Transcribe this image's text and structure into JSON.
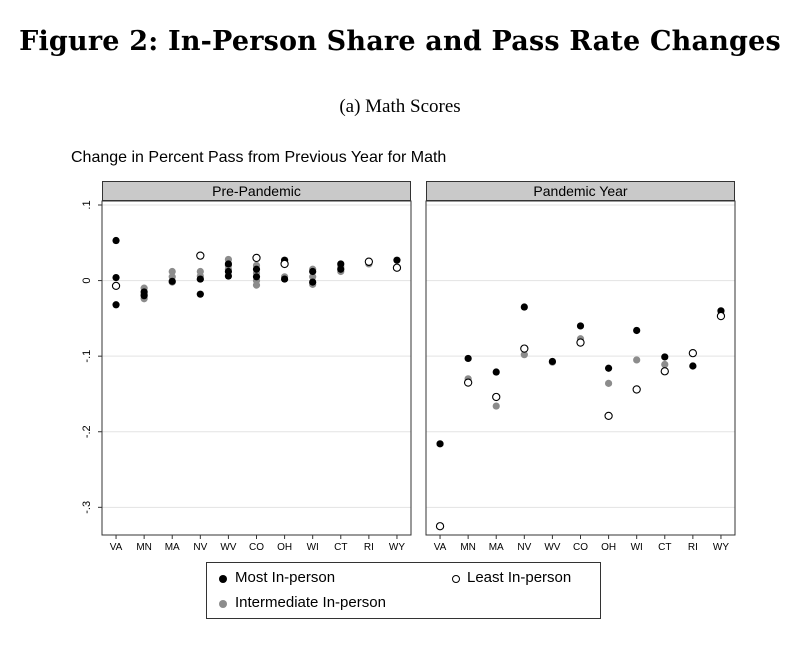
{
  "figure_title": "Figure 2: In-Person Share and Pass Rate Changes",
  "figure_subtitle": "(a) Math Scores",
  "chart_data": {
    "type": "scatter",
    "title": "Change in Percent Pass from Previous Year for Math",
    "xlabel": "",
    "ylabel": "",
    "categories": [
      "VA",
      "MN",
      "MA",
      "NV",
      "WV",
      "CO",
      "OH",
      "WI",
      "CT",
      "RI",
      "WY"
    ],
    "ylim": [
      -0.33,
      0.1
    ],
    "yticks": [
      0.1,
      0,
      -0.1,
      -0.2,
      -0.3
    ],
    "ytick_labels": [
      ".1",
      "0",
      "-.1",
      "-.2",
      "-.3"
    ],
    "grid": true,
    "legend_position": "bottom",
    "colors": {
      "most": "#000000",
      "intermediate": "#8c8c8c",
      "least": "#ffffff"
    },
    "panels": [
      {
        "name": "Pre-Pandemic",
        "series": [
          {
            "key": "most",
            "name": "Most In-person",
            "points": [
              [
                "VA",
                0.053
              ],
              [
                "VA",
                0.004
              ],
              [
                "VA",
                -0.032
              ],
              [
                "MN",
                -0.015
              ],
              [
                "MN",
                -0.02
              ],
              [
                "MA",
                -0.001
              ],
              [
                "NV",
                0.002
              ],
              [
                "NV",
                -0.018
              ],
              [
                "WV",
                0.022
              ],
              [
                "WV",
                0.012
              ],
              [
                "WV",
                0.006
              ],
              [
                "CO",
                0.005
              ],
              [
                "CO",
                0.015
              ],
              [
                "OH",
                0.027
              ],
              [
                "OH",
                0.002
              ],
              [
                "WI",
                0.012
              ],
              [
                "WI",
                -0.002
              ],
              [
                "CT",
                0.022
              ],
              [
                "CT",
                0.015
              ],
              [
                "RI",
                0.024
              ],
              [
                "WY",
                0.027
              ]
            ]
          },
          {
            "key": "intermediate",
            "name": "Intermediate In-person",
            "points": [
              [
                "MN",
                -0.01
              ],
              [
                "MN",
                -0.018
              ],
              [
                "MN",
                -0.024
              ],
              [
                "MA",
                0.012
              ],
              [
                "MA",
                0.005
              ],
              [
                "MA",
                -0.002
              ],
              [
                "NV",
                0.012
              ],
              [
                "NV",
                0.006
              ],
              [
                "NV",
                0.002
              ],
              [
                "WV",
                0.028
              ],
              [
                "WV",
                0.02
              ],
              [
                "WV",
                0.015
              ],
              [
                "CO",
                0.02
              ],
              [
                "CO",
                0.01
              ],
              [
                "CO",
                0.0
              ],
              [
                "CO",
                -0.006
              ],
              [
                "OH",
                0.025
              ],
              [
                "OH",
                0.005
              ],
              [
                "WI",
                0.015
              ],
              [
                "WI",
                0.005
              ],
              [
                "WI",
                -0.005
              ],
              [
                "CT",
                0.012
              ],
              [
                "CT",
                0.018
              ],
              [
                "RI",
                0.022
              ]
            ]
          },
          {
            "key": "least",
            "name": "Least In-person",
            "points": [
              [
                "VA",
                -0.007
              ],
              [
                "NV",
                0.033
              ],
              [
                "CO",
                0.03
              ],
              [
                "OH",
                0.022
              ],
              [
                "RI",
                0.025
              ],
              [
                "WY",
                0.017
              ]
            ]
          }
        ]
      },
      {
        "name": "Pandemic Year",
        "series": [
          {
            "key": "most",
            "name": "Most In-person",
            "points": [
              [
                "VA",
                -0.216
              ],
              [
                "MN",
                -0.103
              ],
              [
                "MA",
                -0.121
              ],
              [
                "NV",
                -0.035
              ],
              [
                "WV",
                -0.107
              ],
              [
                "CO",
                -0.06
              ],
              [
                "OH",
                -0.116
              ],
              [
                "WI",
                -0.066
              ],
              [
                "CT",
                -0.101
              ],
              [
                "RI",
                -0.113
              ],
              [
                "WY",
                -0.04
              ]
            ]
          },
          {
            "key": "intermediate",
            "name": "Intermediate In-person",
            "points": [
              [
                "MN",
                -0.13
              ],
              [
                "MA",
                -0.166
              ],
              [
                "NV",
                -0.098
              ],
              [
                "WV",
                -0.108
              ],
              [
                "CO",
                -0.077
              ],
              [
                "OH",
                -0.136
              ],
              [
                "WI",
                -0.105
              ],
              [
                "CT",
                -0.111
              ],
              [
                "RI",
                -0.113
              ]
            ]
          },
          {
            "key": "least",
            "name": "Least In-person",
            "points": [
              [
                "VA",
                -0.325
              ],
              [
                "MN",
                -0.135
              ],
              [
                "MA",
                -0.154
              ],
              [
                "NV",
                -0.09
              ],
              [
                "CO",
                -0.082
              ],
              [
                "OH",
                -0.179
              ],
              [
                "WI",
                -0.144
              ],
              [
                "CT",
                -0.12
              ],
              [
                "RI",
                -0.096
              ],
              [
                "WY",
                -0.047
              ]
            ]
          }
        ]
      }
    ]
  },
  "legend": {
    "most": "Most In-person",
    "least": "Least In-person",
    "intermediate": "Intermediate In-person"
  }
}
